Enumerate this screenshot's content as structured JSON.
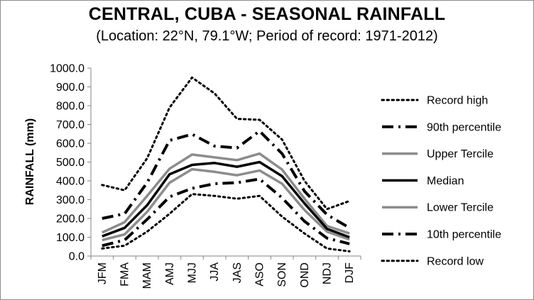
{
  "chart_data": {
    "type": "line",
    "title": "CENTRAL, CUBA - SEASONAL RAINFALL",
    "subtitle": "(Location: 22°N, 79.1°W; Period of record: 1971-2012)",
    "xlabel": "",
    "ylabel": "RAINFALL (mm)",
    "ylim": [
      0,
      1000
    ],
    "ytick_step": 100,
    "ytick_format": "0.0",
    "grid": false,
    "legend_position": "right",
    "categories": [
      "JFM",
      "FMA",
      "MAM",
      "AMJ",
      "MJJ",
      "JJA",
      "JAS",
      "ASO",
      "SON",
      "OND",
      "NDJ",
      "DJF"
    ],
    "series": [
      {
        "name": "Record high",
        "style": "dot",
        "color": "#000000",
        "values": [
          378,
          350,
          520,
          790,
          950,
          865,
          730,
          725,
          620,
          400,
          250,
          293
        ]
      },
      {
        "name": "90th percentile",
        "style": "longdashdot",
        "color": "#000000",
        "values": [
          200,
          225,
          390,
          615,
          648,
          585,
          575,
          665,
          545,
          345,
          220,
          150
        ]
      },
      {
        "name": "Upper Tercile",
        "style": "solid",
        "color": "#8c8c8c",
        "values": [
          125,
          180,
          320,
          465,
          540,
          525,
          510,
          545,
          460,
          305,
          160,
          120
        ]
      },
      {
        "name": "Median",
        "style": "solid",
        "color": "#000000",
        "values": [
          105,
          150,
          270,
          435,
          485,
          495,
          475,
          500,
          425,
          280,
          145,
          100
        ]
      },
      {
        "name": "Lower Tercile",
        "style": "solid",
        "color": "#8c8c8c",
        "values": [
          85,
          115,
          235,
          390,
          462,
          448,
          430,
          455,
          385,
          245,
          130,
          88
        ]
      },
      {
        "name": "10th percentile",
        "style": "longdashdot",
        "color": "#000000",
        "values": [
          55,
          85,
          195,
          315,
          360,
          385,
          390,
          410,
          310,
          185,
          95,
          65
        ]
      },
      {
        "name": "Record low",
        "style": "dot",
        "color": "#000000",
        "values": [
          40,
          55,
          130,
          225,
          330,
          320,
          305,
          320,
          210,
          120,
          40,
          25
        ]
      }
    ]
  }
}
